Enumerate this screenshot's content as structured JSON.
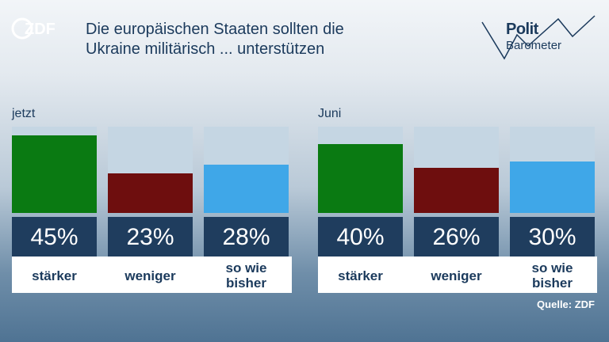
{
  "header": {
    "brand": "ZDF",
    "title_line1": "Die europäischen Staaten sollten die",
    "title_line2": "Ukraine militärisch ... unterstützen",
    "logo_line1": "Polit",
    "logo_line2": "Barometer"
  },
  "source": "Quelle: ZDF",
  "colors": {
    "staerker": "#0a7a12",
    "weniger": "#6e0e0e",
    "so_wie_bisher": "#3fa7e8",
    "bar_background": "#c5d6e3",
    "value_box": "#1f3d5e",
    "title": "#1b3a5c"
  },
  "chart_data": {
    "type": "bar",
    "title": "Die europäischen Staaten sollten die Ukraine militärisch ... unterstützen",
    "unit": "%",
    "ylim": [
      0,
      100
    ],
    "categories": [
      "stärker",
      "weniger",
      "so wie bisher"
    ],
    "groups": [
      {
        "label": "jetzt",
        "values": [
          45,
          23,
          28
        ],
        "value_labels": [
          "45%",
          "23%",
          "28%"
        ],
        "category_labels": [
          "stärker",
          "weniger",
          "so wie\nbisher"
        ]
      },
      {
        "label": "Juni",
        "values": [
          40,
          26,
          30
        ],
        "value_labels": [
          "40%",
          "26%",
          "30%"
        ],
        "category_labels": [
          "stärker",
          "weniger",
          "so wie\nbisher"
        ]
      }
    ]
  }
}
